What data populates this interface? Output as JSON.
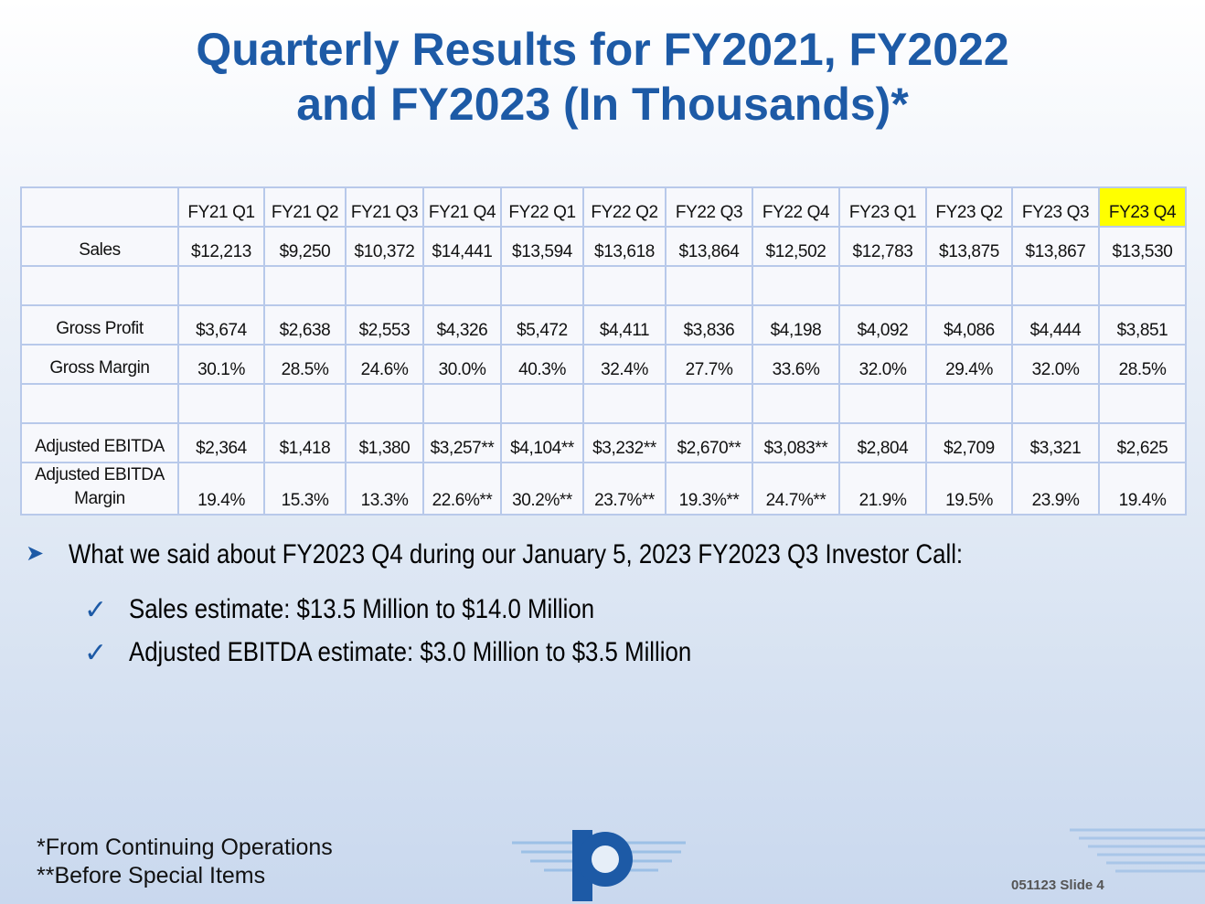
{
  "title": [
    "Quarterly Results for FY2021, FY2022",
    "and FY2023 (In Thousands)*"
  ],
  "table": {
    "columns": [
      "FY21 Q1",
      "FY21 Q2",
      "FY21 Q3",
      "FY21 Q4",
      "FY22 Q1",
      "FY22 Q2",
      "FY22 Q3",
      "FY22 Q4",
      "FY23 Q1",
      "FY23 Q2",
      "FY23 Q3",
      "FY23 Q4"
    ],
    "highlight_column": 11,
    "highlight_color": "#ffff00",
    "rows": [
      {
        "label": "Sales",
        "values": [
          "$12,213",
          "$9,250",
          "$10,372",
          "$14,441",
          "$13,594",
          "$13,618",
          "$13,864",
          "$12,502",
          "$12,783",
          "$13,875",
          "$13,867",
          "$13,530"
        ]
      },
      {
        "label": "Gross Profit",
        "values": [
          "$3,674",
          "$2,638",
          "$2,553",
          "$4,326",
          "$5,472",
          "$4,411",
          "$3,836",
          "$4,198",
          "$4,092",
          "$4,086",
          "$4,444",
          "$3,851"
        ]
      },
      {
        "label": "Gross Margin",
        "values": [
          "30.1%",
          "28.5%",
          "24.6%",
          "30.0%",
          "40.3%",
          "32.4%",
          "27.7%",
          "33.6%",
          "32.0%",
          "29.4%",
          "32.0%",
          "28.5%"
        ]
      },
      {
        "label": "Adjusted EBITDA",
        "values": [
          "$2,364",
          "$1,418",
          "$1,380",
          "$3,257**",
          "$4,104**",
          "$3,232**",
          "$2,670**",
          "$3,083**",
          "$2,804",
          "$2,709",
          "$3,321",
          "$2,625"
        ]
      },
      {
        "label": "Adjusted EBITDA Margin",
        "values": [
          "19.4%",
          "15.3%",
          "13.3%",
          "22.6%**",
          "30.2%**",
          "23.7%**",
          "19.3%**",
          "24.7%**",
          "21.9%",
          "19.5%",
          "23.9%",
          "19.4%"
        ]
      }
    ]
  },
  "bullet": "What we said about FY2023 Q4 during our January 5, 2023 FY2023 Q3 Investor Call:",
  "checks": [
    "Sales estimate: $13.5 Million to $14.0 Million",
    "Adjusted EBITDA estimate: $3.0 Million to $3.5 Million"
  ],
  "footnotes": [
    "*From Continuing Operations",
    "**Before Special Items"
  ],
  "slide_number": "051123 Slide 4"
}
